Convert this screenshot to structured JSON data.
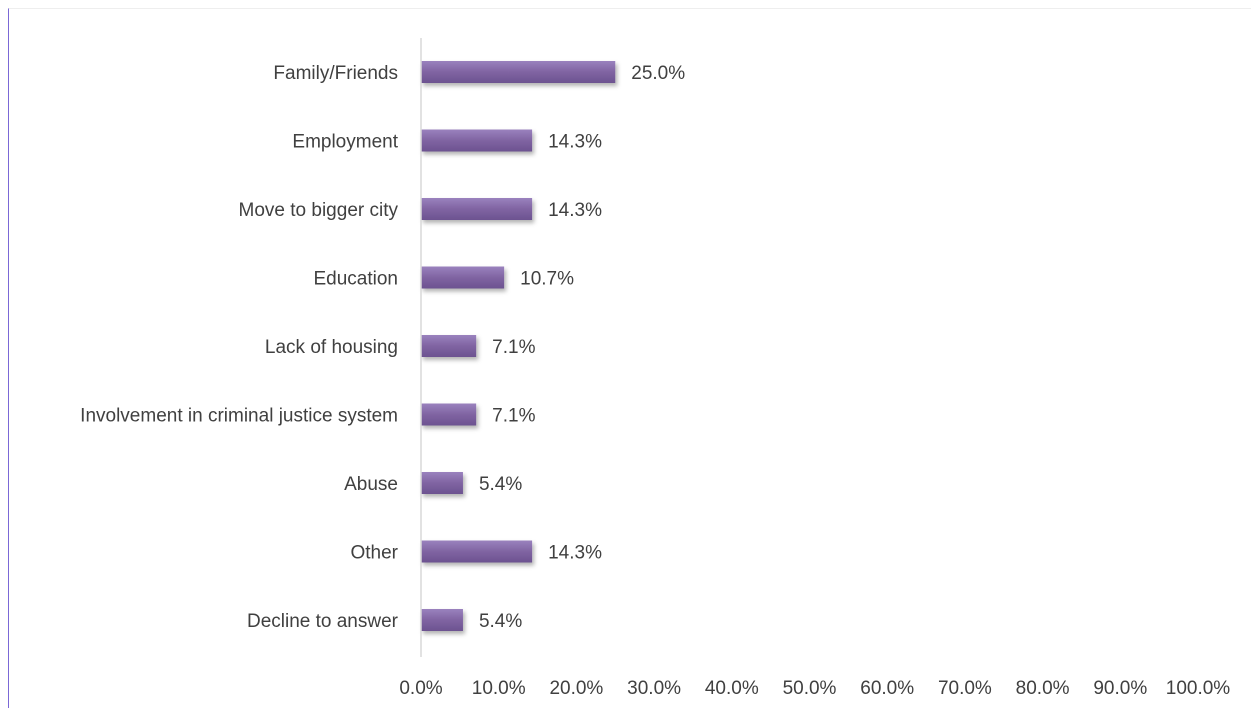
{
  "chart_data": {
    "type": "bar",
    "orientation": "horizontal",
    "categories": [
      "Family/Friends",
      "Employment",
      "Move to bigger city",
      "Education",
      "Lack of housing",
      "Involvement in criminal justice system",
      "Abuse",
      "Other",
      "Decline to answer"
    ],
    "values": [
      25.0,
      14.3,
      14.3,
      10.7,
      7.1,
      7.1,
      5.4,
      14.3,
      5.4
    ],
    "data_labels": [
      "25.0%",
      "14.3%",
      "14.3%",
      "10.7%",
      "7.1%",
      "7.1%",
      "5.4%",
      "14.3%",
      "5.4%"
    ],
    "x_ticks": [
      "0.0%",
      "10.0%",
      "20.0%",
      "30.0%",
      "40.0%",
      "50.0%",
      "60.0%",
      "70.0%",
      "80.0%",
      "90.0%",
      "100.0%"
    ],
    "xlim": [
      0,
      100
    ],
    "title": "",
    "xlabel": "",
    "ylabel": "",
    "grid": false,
    "legend": "none",
    "colors": {
      "bar": "#8064a2",
      "bar_shadow": "#a8a8a8",
      "axis": "#d9d9d9",
      "text": "#404040",
      "frame_left": "#7b68d6"
    }
  }
}
